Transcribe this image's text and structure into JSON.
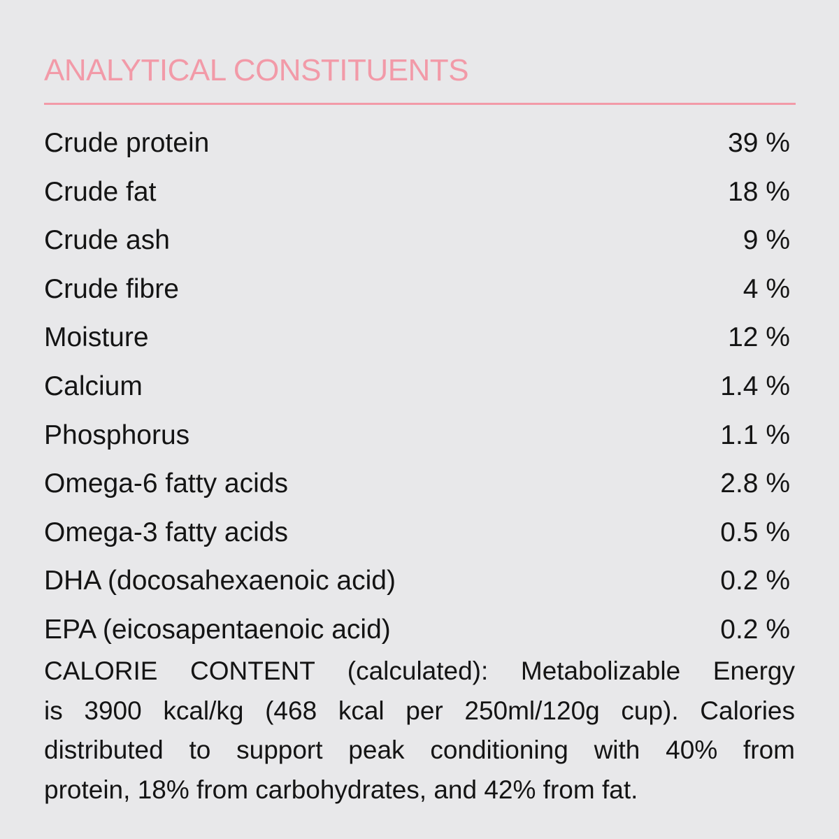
{
  "title": "ANALYTICAL CONSTITUENTS",
  "accent_color": "#f29aa8",
  "rows": [
    {
      "label": "Crude protein",
      "value": "39 %"
    },
    {
      "label": "Crude fat",
      "value": "18 %"
    },
    {
      "label": "Crude ash",
      "value": "9 %"
    },
    {
      "label": "Crude fibre",
      "value": "4 %"
    },
    {
      "label": "Moisture",
      "value": "12 %"
    },
    {
      "label": "Calcium",
      "value": "1.4 %"
    },
    {
      "label": "Phosphorus",
      "value": "1.1 %"
    },
    {
      "label": "Omega-6 fatty acids",
      "value": "2.8 %"
    },
    {
      "label": "Omega-3 fatty acids",
      "value": "0.5 %"
    },
    {
      "label": "DHA (docosahexaenoic acid)",
      "value": "0.2 %"
    },
    {
      "label": "EPA (eicosapentaenoic acid)",
      "value": "0.2 %"
    }
  ],
  "calorie_lines": [
    "CALORIE CONTENT (calculated): Metabolizable Energy",
    "is 3900 kcal/kg (468 kcal per 250ml/120g cup). Calories",
    "distributed to support peak conditioning with 40% from",
    "protein, 18% from carbohydrates, and 42% from fat."
  ]
}
